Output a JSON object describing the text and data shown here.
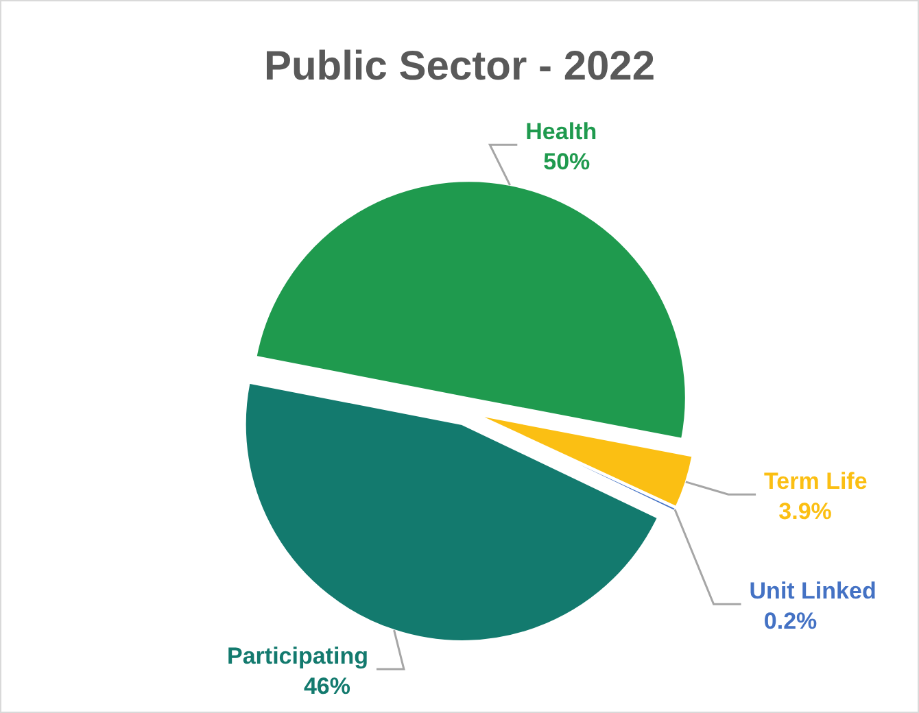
{
  "chart_data": {
    "type": "pie",
    "title": "Public Sector - 2022",
    "categories": [
      "Health",
      "Term Life",
      "Unit Linked",
      "Participating"
    ],
    "values": [
      50,
      3.9,
      0.2,
      46
    ],
    "value_labels": [
      "50%",
      "3.9%",
      "0.2%",
      "46%"
    ],
    "colors": [
      "#1f9a4e",
      "#fbbf13",
      "#4472c4",
      "#137a6e"
    ]
  }
}
